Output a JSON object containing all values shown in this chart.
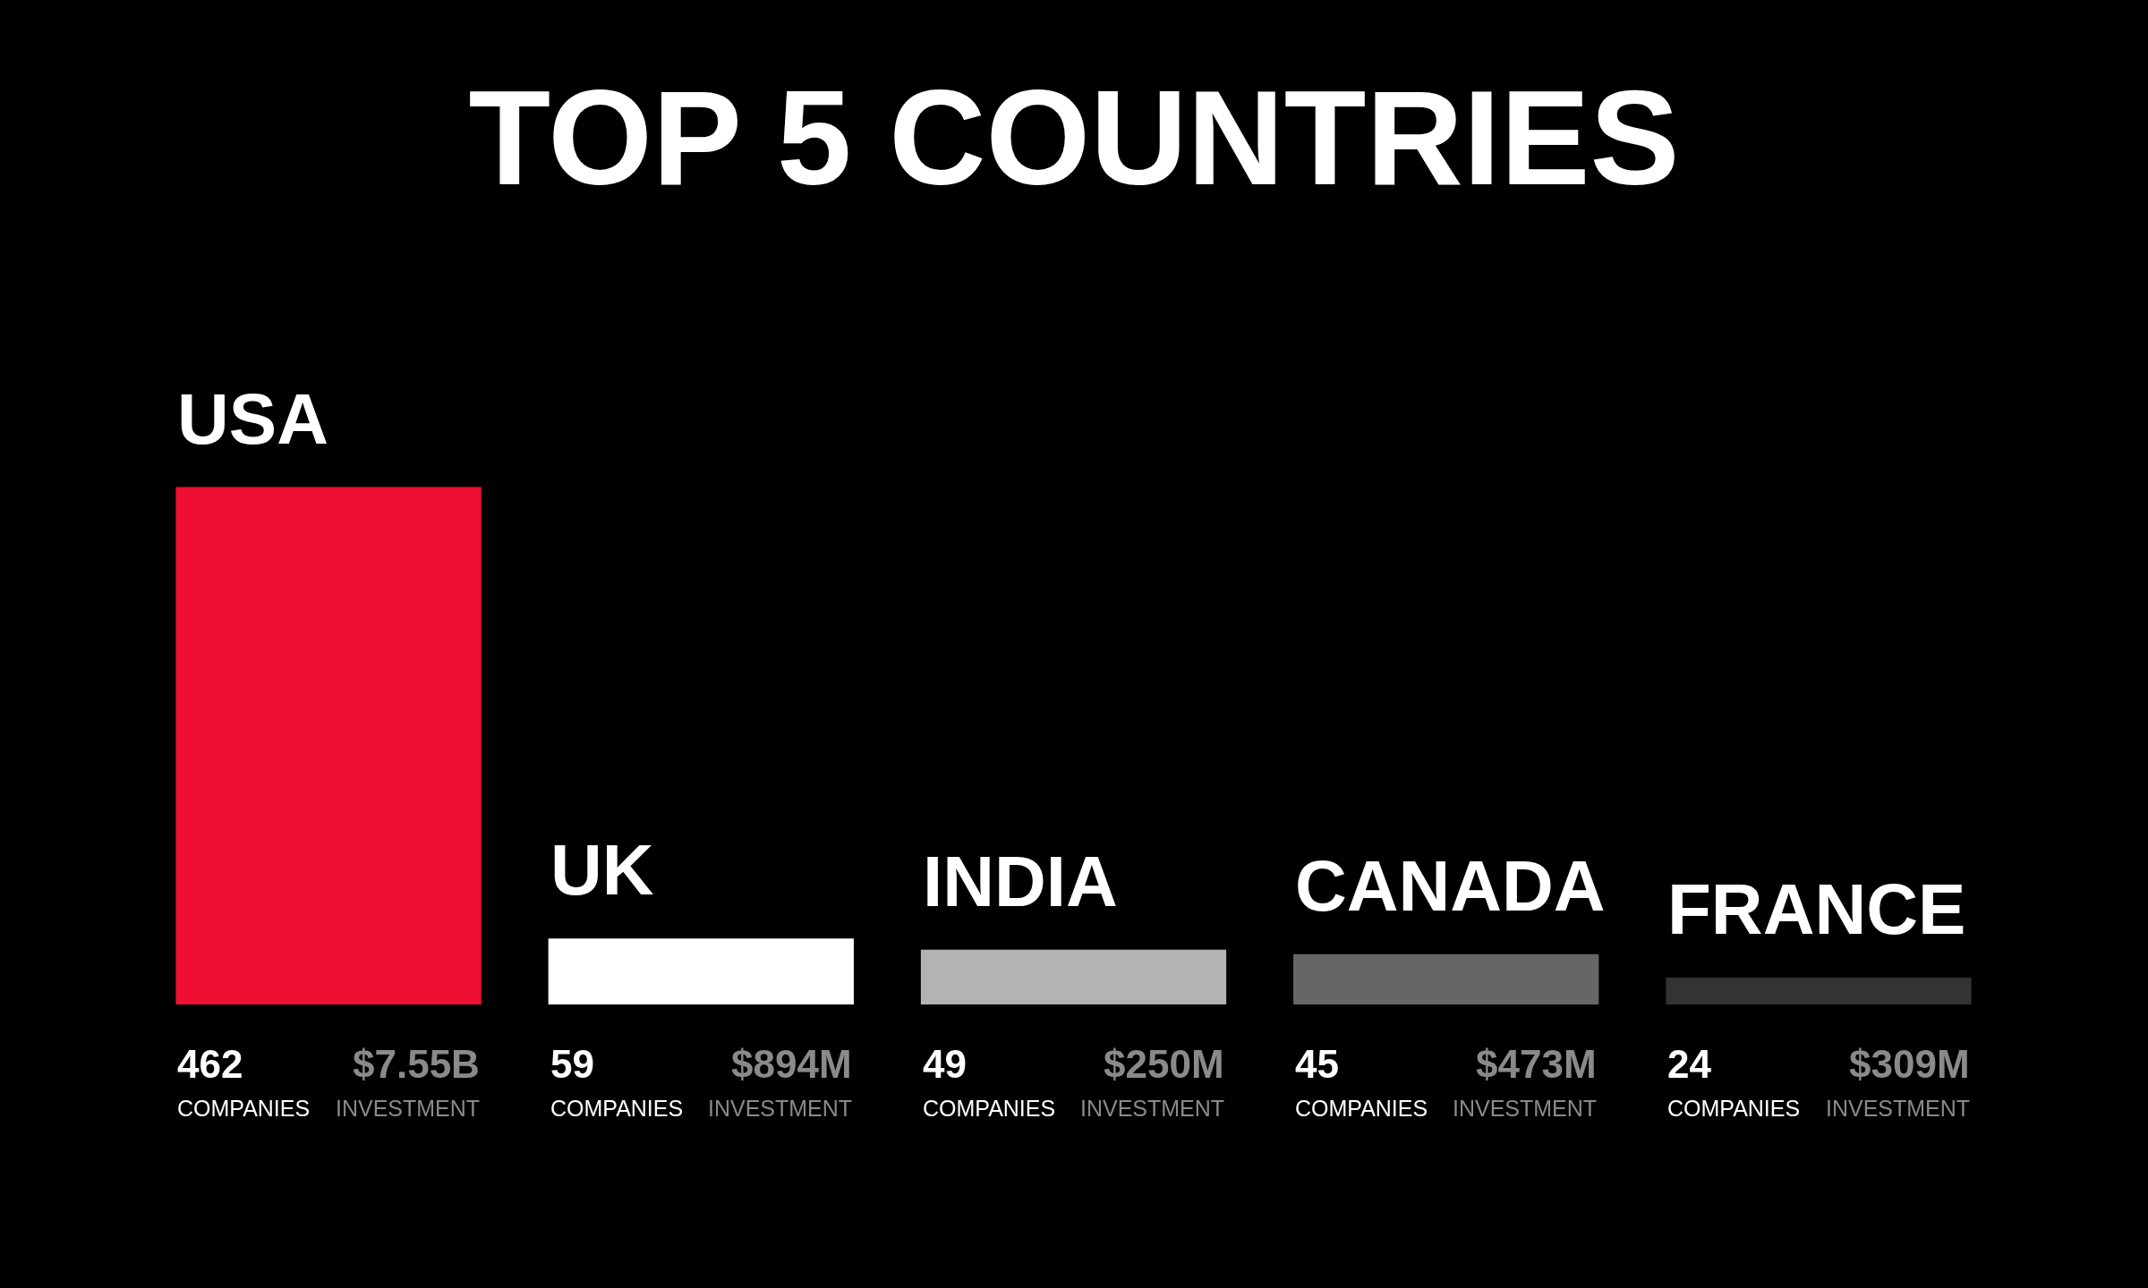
{
  "chart_data": {
    "type": "bar",
    "title": "TOP 5 COUNTRIES",
    "categories": [
      "USA",
      "UK",
      "INDIA",
      "CANADA",
      "FRANCE"
    ],
    "values": [
      462,
      59,
      49,
      45,
      24
    ],
    "colors": [
      "#ee0f32",
      "#ffffff",
      "#b3b3b3",
      "#666666",
      "#333333"
    ],
    "value_labels": [
      "462\nCOMPANIES",
      "59\nCOMPANIES",
      "49\nCOMPANIES",
      "45\nCOMPANIES",
      "24\nCOMPANIES"
    ],
    "annotations": [
      "$7.55B\nINVESTMENT",
      "$894M\nINVESTMENT",
      "$250M\nINVESTMENT",
      "$473M\nINVESTMENT",
      "$309M\nINVESTMENT"
    ],
    "grid": false,
    "legend": false
  }
}
